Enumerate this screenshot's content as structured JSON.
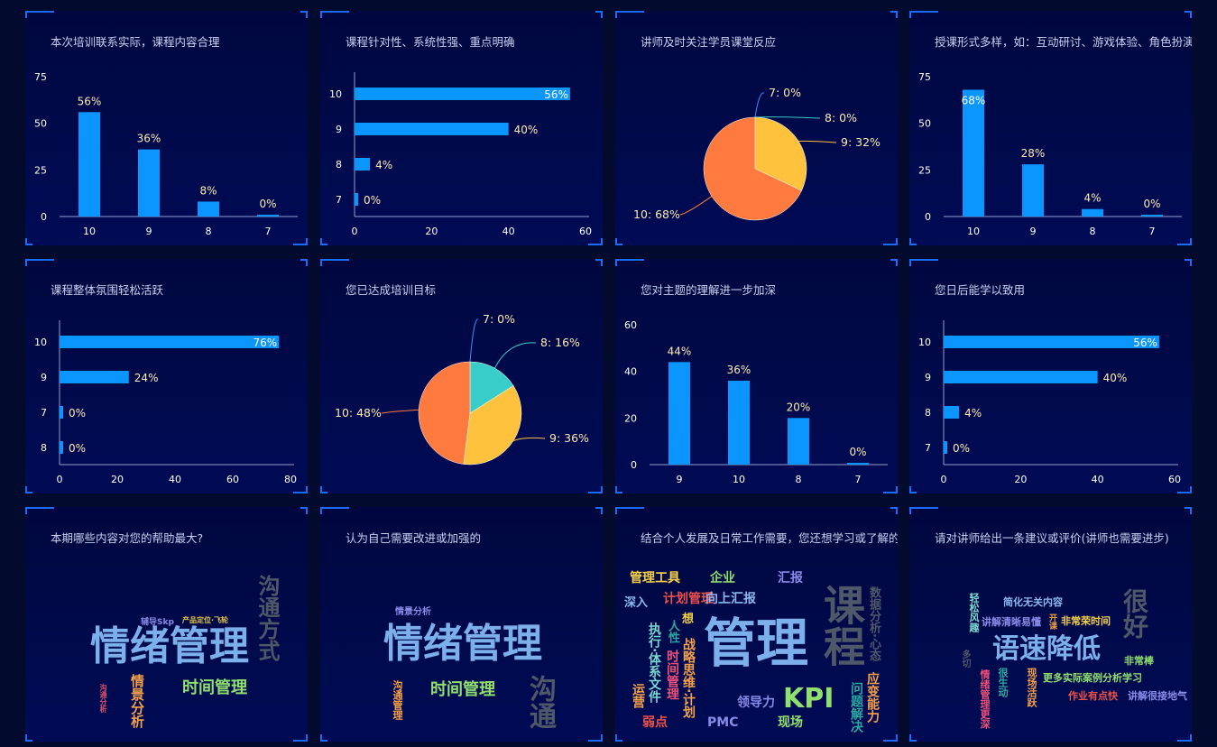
{
  "colors": {
    "bar": "#0a95ff",
    "axis": "#8ea0d0",
    "label": "#ffffff",
    "pie_10": "#ff7a3f",
    "pie_9": "#ffc23c",
    "pie_8": "#38cdc8",
    "pie_7": "#3a8fff"
  },
  "chart_data": [
    {
      "type": "bar",
      "orientation": "vertical",
      "title": "本次培训联系实际，课程内容合理",
      "categories": [
        "10",
        "9",
        "8",
        "7"
      ],
      "values": [
        56,
        36,
        8,
        0
      ],
      "labels": [
        "56%",
        "36%",
        "8%",
        "0%"
      ],
      "ylim": [
        0,
        75
      ],
      "yticks": [
        0,
        25,
        50,
        75
      ]
    },
    {
      "type": "bar",
      "orientation": "horizontal",
      "title": "课程针对性、系统性强、重点明确",
      "categories": [
        "10",
        "9",
        "8",
        "7"
      ],
      "values": [
        56,
        40,
        4,
        0
      ],
      "labels": [
        "56%",
        "40%",
        "4%",
        "0%"
      ],
      "xlim": [
        0,
        60
      ],
      "xticks": [
        0,
        20,
        40,
        60
      ]
    },
    {
      "type": "pie",
      "title": "讲师及时关注学员课堂反应",
      "categories": [
        "7",
        "8",
        "9",
        "10"
      ],
      "values": [
        0,
        0,
        32,
        68
      ],
      "labels": [
        "7: 0%",
        "8: 0%",
        "9: 32%",
        "10: 68%"
      ]
    },
    {
      "type": "bar",
      "orientation": "vertical",
      "title": "授课形式多样，如：互动研讨、游戏体验、角色扮演",
      "categories": [
        "10",
        "9",
        "8",
        "7"
      ],
      "values": [
        68,
        28,
        4,
        0
      ],
      "labels": [
        "68%",
        "28%",
        "4%",
        "0%"
      ],
      "ylim": [
        0,
        75
      ],
      "yticks": [
        0,
        25,
        50,
        75
      ]
    },
    {
      "type": "bar",
      "orientation": "horizontal",
      "title": "课程整体氛围轻松活跃",
      "categories": [
        "10",
        "9",
        "7",
        "8"
      ],
      "values": [
        76,
        24,
        0,
        0
      ],
      "labels": [
        "76%",
        "24%",
        "0%",
        "0%"
      ],
      "xlim": [
        0,
        80
      ],
      "xticks": [
        0,
        20,
        40,
        60,
        80
      ]
    },
    {
      "type": "pie",
      "title": "您已达成培训目标",
      "categories": [
        "7",
        "8",
        "9",
        "10"
      ],
      "values": [
        0,
        16,
        36,
        48
      ],
      "labels": [
        "7: 0%",
        "8: 16%",
        "9: 36%",
        "10: 48%"
      ]
    },
    {
      "type": "bar",
      "orientation": "vertical",
      "title": "您对主题的理解进一步加深",
      "categories": [
        "9",
        "10",
        "8",
        "7"
      ],
      "values": [
        44,
        36,
        20,
        0
      ],
      "labels": [
        "44%",
        "36%",
        "20%",
        "0%"
      ],
      "ylim": [
        0,
        60
      ],
      "yticks": [
        0,
        20,
        40,
        60
      ]
    },
    {
      "type": "bar",
      "orientation": "horizontal",
      "title": "您日后能学以致用",
      "categories": [
        "10",
        "9",
        "8",
        "7"
      ],
      "values": [
        56,
        40,
        4,
        0
      ],
      "labels": [
        "56%",
        "40%",
        "4%",
        "0%"
      ],
      "xlim": [
        0,
        60
      ],
      "xticks": [
        0,
        20,
        40,
        60
      ]
    }
  ],
  "wordclouds": [
    {
      "title": "本期哪些内容对您的帮助最大?",
      "words": [
        {
          "text": "情绪管理",
          "color": "#7cb0ea"
        },
        {
          "text": "沟通方式",
          "color": "#4f5868"
        },
        {
          "text": "时间管理",
          "color": "#8fe06e"
        },
        {
          "text": "情景分析",
          "color": "#f5a04a"
        },
        {
          "text": "辅导Skp",
          "color": "#8a8ae8"
        },
        {
          "text": "产品定位·飞轮",
          "color": "#e8c848"
        },
        {
          "text": "沟通分析",
          "color": "#e0506a"
        }
      ]
    },
    {
      "title": "认为自己需要改进或加强的",
      "words": [
        {
          "text": "情绪管理",
          "color": "#7cb0ea"
        },
        {
          "text": "时间管理",
          "color": "#8fe06e"
        },
        {
          "text": "沟通",
          "color": "#4f5868"
        },
        {
          "text": "情景分析",
          "color": "#8a8ae8"
        },
        {
          "text": "沟通管理",
          "color": "#f5a04a"
        }
      ]
    },
    {
      "title": "结合个人发展及日常工作需要，您还想学习或了解的",
      "words": [
        {
          "text": "管理工具",
          "color": "#f5d04a"
        },
        {
          "text": "企业",
          "color": "#8fe06e"
        },
        {
          "text": "汇报",
          "color": "#8a8ae8"
        },
        {
          "text": "计划管理",
          "color": "#f0504a"
        },
        {
          "text": "向上汇报",
          "color": "#8ab8ee"
        },
        {
          "text": "深入",
          "color": "#8ab8ee"
        },
        {
          "text": "管理",
          "color": "#7cb0ea"
        },
        {
          "text": "课程",
          "color": "#4f5868"
        },
        {
          "text": "数据分析·心态",
          "color": "#4f5868"
        },
        {
          "text": "应变能力",
          "color": "#f5a04a"
        },
        {
          "text": "问题解决",
          "color": "#2aa8a0"
        },
        {
          "text": "KPI",
          "color": "#8fe06e"
        },
        {
          "text": "领导力",
          "color": "#8a8ae8"
        },
        {
          "text": "PMC",
          "color": "#8a8ae8"
        },
        {
          "text": "现场",
          "color": "#8fe06e"
        },
        {
          "text": "弱点",
          "color": "#f0504a"
        },
        {
          "text": "运营",
          "color": "#f5a04a"
        },
        {
          "text": "执行·体系文件",
          "color": "#7ad8d0"
        },
        {
          "text": "时间管理",
          "color": "#f0507a"
        },
        {
          "text": "战略思维·计划",
          "color": "#f5a04a"
        },
        {
          "text": "想",
          "color": "#f5d04a"
        },
        {
          "text": "人性",
          "color": "#2aa8a0"
        }
      ]
    },
    {
      "title": "请对讲师给出一条建议或评价(讲师也需要进步)",
      "words": [
        {
          "text": "很好",
          "color": "#4f5868"
        },
        {
          "text": "语速降低",
          "color": "#7cb0ea"
        },
        {
          "text": "简化无关内容",
          "color": "#8ab8ee"
        },
        {
          "text": "讲解清晰易懂",
          "color": "#8a8ae8"
        },
        {
          "text": "非常荣时间",
          "color": "#f5d04a"
        },
        {
          "text": "开课",
          "color": "#f5a04a"
        },
        {
          "text": "轻松风趣",
          "color": "#7ad8d0"
        },
        {
          "text": "情绪管理更深",
          "color": "#f0507a"
        },
        {
          "text": "很生动",
          "color": "#2aa8a0"
        },
        {
          "text": "现场活跃",
          "color": "#f5a04a"
        },
        {
          "text": "更多实际案例分析学习",
          "color": "#8fe06e"
        },
        {
          "text": "作业有点快",
          "color": "#f0504a"
        },
        {
          "text": "讲解很接地气",
          "color": "#8a8ae8"
        },
        {
          "text": "非常棒",
          "color": "#8fe06e"
        },
        {
          "text": "多切",
          "color": "#4f5868"
        }
      ]
    }
  ]
}
